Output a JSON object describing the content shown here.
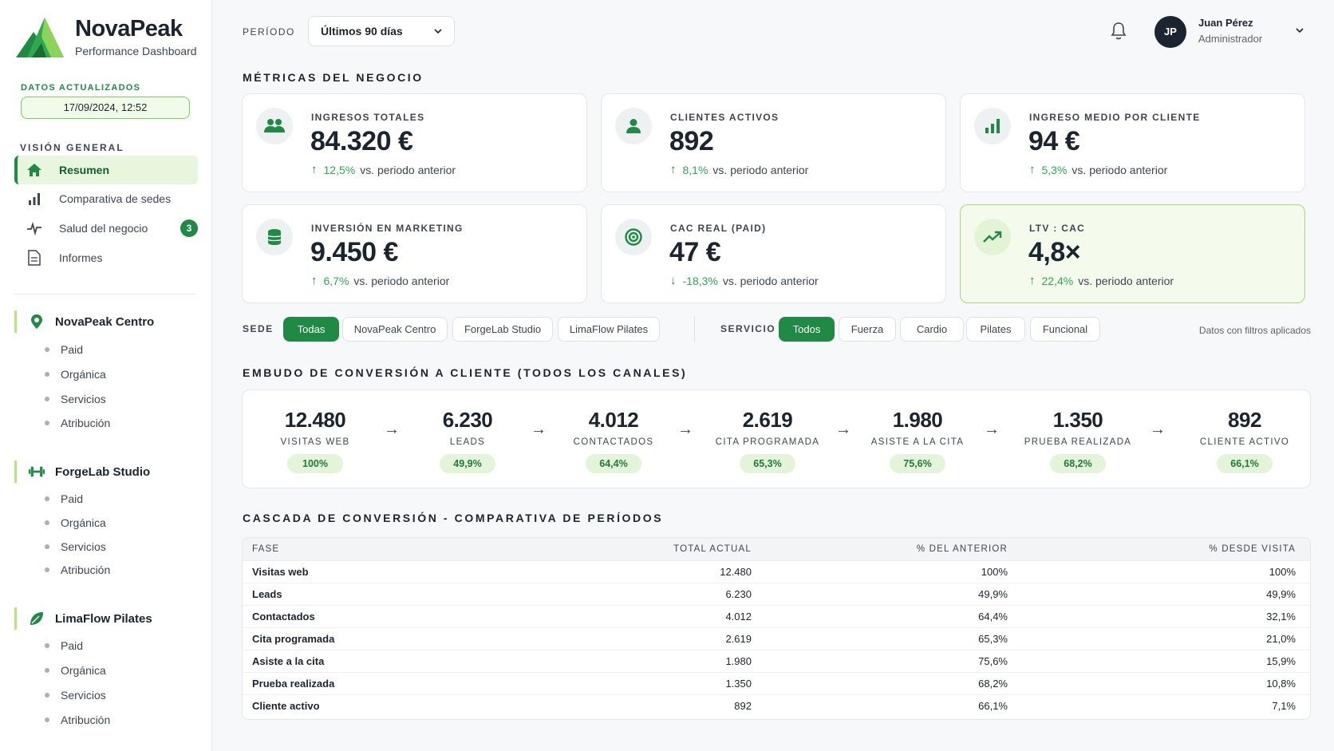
{
  "app": {
    "name": "NovaPeak",
    "subtitle": "Performance Dashboard",
    "brand_color": "#1f8a43",
    "accent_color": "#8bd35b"
  },
  "sidebar": {
    "updated_label": "DATOS ACTUALIZADOS",
    "updated_value": "17/09/2024, 12:52",
    "section_title": "VISIÓN GENERAL",
    "nav": [
      {
        "label": "Resumen",
        "icon": "home-icon",
        "active": true
      },
      {
        "label": "Comparativa de sedes",
        "icon": "bar-chart-icon"
      },
      {
        "label": "Salud del negocio",
        "icon": "pulse-icon",
        "badge": "3"
      },
      {
        "label": "Informes",
        "icon": "document-icon"
      }
    ],
    "sites": [
      {
        "name": "NovaPeak Centro",
        "icon": "location-pin-icon",
        "items": [
          "Paid",
          "Orgánica",
          "Servicios",
          "Atribución"
        ]
      },
      {
        "name": "ForgeLab Studio",
        "icon": "dumbbell-icon",
        "items": [
          "Paid",
          "Orgánica",
          "Servicios",
          "Atribución"
        ]
      },
      {
        "name": "LimaFlow Pilates",
        "icon": "leaf-icon",
        "items": [
          "Paid",
          "Orgánica",
          "Servicios",
          "Atribución"
        ]
      }
    ]
  },
  "header": {
    "period_label": "PERÍODO",
    "period_value": "Últimos 90 días",
    "user_initials": "JP",
    "user_name": "Juan Pérez",
    "user_role": "Administrador"
  },
  "metrics": {
    "title": "MÉTRICAS DEL NEGOCIO",
    "compare_text": "vs. periodo anterior",
    "cards": [
      {
        "label": "INGRESOS TOTALES",
        "value": "84.320 €",
        "delta": "12,5%",
        "direction": "up",
        "icon": "users-icon"
      },
      {
        "label": "CLIENTES ACTIVOS",
        "value": "892",
        "delta": "8,1%",
        "direction": "up",
        "icon": "user-icon"
      },
      {
        "label": "INGRESO MEDIO POR CLIENTE",
        "value": "94 €",
        "delta": "5,3%",
        "direction": "up",
        "icon": "bar-chart-icon"
      },
      {
        "label": "INVERSIÓN EN MARKETING",
        "value": "9.450 €",
        "delta": "6,7%",
        "direction": "up",
        "icon": "database-icon"
      },
      {
        "label": "CAC REAL (PAID)",
        "value": "47 €",
        "delta": "-18,3%",
        "direction": "down",
        "icon": "target-icon"
      },
      {
        "label": "LTV : CAC",
        "value": "4,8×",
        "delta": "22,4%",
        "direction": "up",
        "icon": "trend-up-icon",
        "highlight": true
      }
    ]
  },
  "filters": {
    "sede_label": "SEDE",
    "sede_options": [
      "Todas",
      "NovaPeak Centro",
      "ForgeLab Studio",
      "LimaFlow Pilates"
    ],
    "sede_selected": "Todas",
    "servicio_label": "SERVICIO",
    "servicio_options": [
      "Todos",
      "Fuerza",
      "Cardio",
      "Pilates",
      "Funcional"
    ],
    "servicio_selected": "Todos",
    "note": "Datos con filtros aplicados"
  },
  "funnel": {
    "title": "EMBUDO DE CONVERSIÓN A CLIENTE (TODOS LOS CANALES)",
    "steps": [
      {
        "value": "12.480",
        "label": "VISITAS WEB",
        "pct": "100%"
      },
      {
        "value": "6.230",
        "label": "LEADS",
        "pct": "49,9%"
      },
      {
        "value": "4.012",
        "label": "CONTACTADOS",
        "pct": "64,4%"
      },
      {
        "value": "2.619",
        "label": "CITA PROGRAMADA",
        "pct": "65,3%"
      },
      {
        "value": "1.980",
        "label": "ASISTE A LA CITA",
        "pct": "75,6%"
      },
      {
        "value": "1.350",
        "label": "PRUEBA REALIZADA",
        "pct": "68,2%"
      },
      {
        "value": "892",
        "label": "CLIENTE ACTIVO",
        "pct": "66,1%"
      }
    ]
  },
  "cascade": {
    "title": "CASCADA DE CONVERSIÓN - COMPARATIVA DE PERÍODOS",
    "columns": [
      "FASE",
      "TOTAL ACTUAL",
      "% DEL ANTERIOR",
      "% DESDE VISITA"
    ],
    "rows": [
      [
        "Visitas web",
        "12.480",
        "100%",
        "100%"
      ],
      [
        "Leads",
        "6.230",
        "49,9%",
        "49,9%"
      ],
      [
        "Contactados",
        "4.012",
        "64,4%",
        "32,1%"
      ],
      [
        "Cita programada",
        "2.619",
        "65,3%",
        "21,0%"
      ],
      [
        "Asiste a la cita",
        "1.980",
        "75,6%",
        "15,9%"
      ],
      [
        "Prueba realizada",
        "1.350",
        "68,2%",
        "10,8%"
      ],
      [
        "Cliente activo",
        "892",
        "66,1%",
        "7,1%"
      ]
    ]
  }
}
